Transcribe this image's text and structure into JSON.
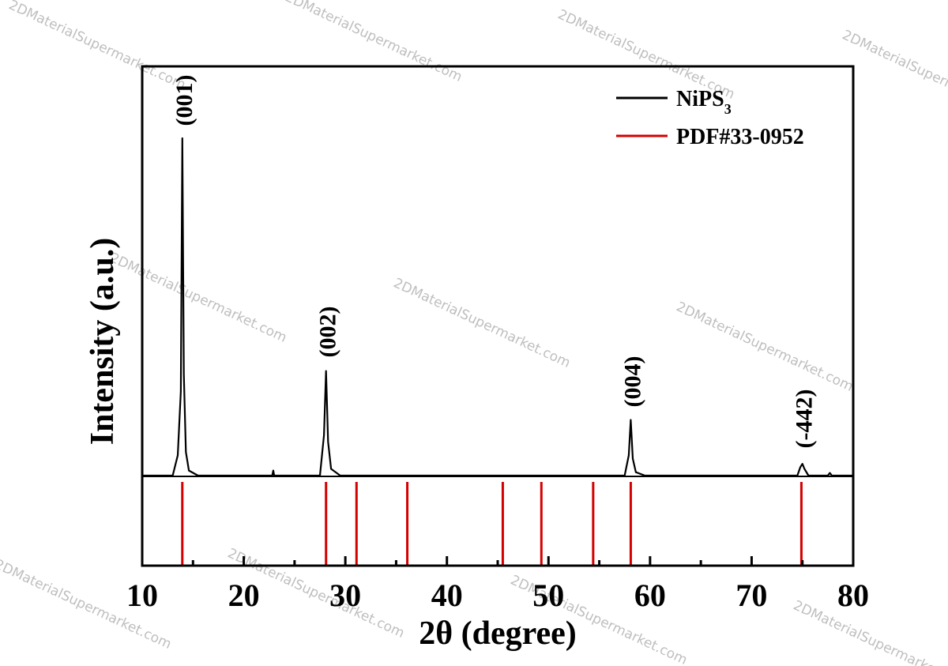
{
  "watermark": "2DMaterialSupermarket.com",
  "chart_data": {
    "type": "line",
    "xlabel": "2θ (degree)",
    "ylabel": "Intensity (a.u.)",
    "xlim": [
      10,
      80
    ],
    "xticks": [
      "10",
      "20",
      "30",
      "40",
      "50",
      "60",
      "70",
      "80"
    ],
    "grid": false,
    "legend_position": "top-right",
    "colors": {
      "pattern": "#000000",
      "reference": "#d40000"
    },
    "series": [
      {
        "name": "NiPS",
        "name_subscript": "3",
        "color": "#000000",
        "baseline": 0.0,
        "x": [
          10.0,
          13.0,
          13.5,
          13.8,
          13.95,
          14.1,
          14.3,
          14.6,
          15.5,
          22.8,
          22.9,
          23.0,
          27.5,
          27.9,
          28.1,
          28.3,
          28.6,
          29.5,
          45.0,
          57.5,
          57.9,
          58.1,
          58.3,
          58.6,
          59.5,
          74.5,
          74.8,
          75.0,
          75.2,
          75.6,
          77.5,
          77.7,
          77.9,
          80.0
        ],
        "y": [
          0.0,
          0.0,
          0.06,
          0.25,
          1.0,
          0.3,
          0.07,
          0.015,
          0.0,
          0.0,
          0.015,
          0.0,
          0.0,
          0.12,
          0.31,
          0.1,
          0.02,
          0.0,
          0.0,
          0.0,
          0.06,
          0.165,
          0.05,
          0.01,
          0.0,
          0.0,
          0.025,
          0.035,
          0.02,
          0.0,
          0.0,
          0.008,
          0.0,
          0.0
        ]
      }
    ],
    "reference": {
      "name": "PDF#33-0952",
      "color": "#d40000",
      "positions": [
        13.95,
        28.1,
        31.1,
        36.1,
        45.5,
        49.3,
        54.4,
        58.1,
        74.9
      ]
    },
    "annotations": [
      {
        "text": "(001)",
        "x": 13.95
      },
      {
        "text": "(002)",
        "x": 28.1
      },
      {
        "text": "(004)",
        "x": 58.1
      },
      {
        "text": "(-442)",
        "x": 75.0
      }
    ]
  }
}
